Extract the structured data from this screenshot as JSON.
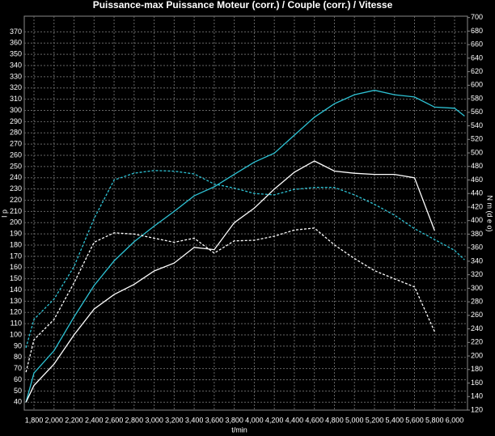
{
  "chart_data": {
    "type": "line",
    "title": "Puissance-max Puissance Moteur (corr.) / Couple (corr.) / Vitesse",
    "x_label": "t/min",
    "y_label": "I p",
    "y2_label": "N m (d e o)",
    "x": [
      1720,
      1800,
      2000,
      2200,
      2400,
      2600,
      2800,
      3000,
      3200,
      3400,
      3600,
      3800,
      4000,
      4200,
      4400,
      4600,
      4800,
      5000,
      5200,
      5400,
      5600,
      5800,
      6000,
      6100
    ],
    "series": [
      {
        "color": "#2ec4d6",
        "dashed": false,
        "axis": "y",
        "values": [
          40,
          66,
          86,
          116,
          144,
          166,
          183,
          197,
          210,
          224,
          232,
          243,
          254,
          262,
          278,
          294,
          306,
          314,
          318,
          314,
          312,
          303,
          302,
          295
        ]
      },
      {
        "color": "#ffffff",
        "dashed": false,
        "axis": "y",
        "values": [
          40,
          55,
          74,
          100,
          123,
          136,
          145,
          157,
          164,
          178,
          176,
          200,
          213,
          230,
          245,
          255,
          246,
          244,
          243,
          243,
          240,
          193,
          null,
          null
        ]
      },
      {
        "color": "#2ec4d6",
        "dashed": true,
        "axis": "y2",
        "values": [
          212,
          254,
          284,
          332,
          403,
          460,
          470,
          474,
          473,
          469,
          454,
          448,
          440,
          438,
          446,
          449,
          449,
          438,
          424,
          408,
          388,
          372,
          356,
          342
        ]
      },
      {
        "color": "#ffffff",
        "dashed": true,
        "axis": "y2",
        "values": [
          176,
          224,
          254,
          308,
          368,
          382,
          380,
          374,
          368,
          374,
          352,
          370,
          371,
          377,
          386,
          389,
          364,
          344,
          326,
          314,
          302,
          236,
          null,
          null
        ]
      }
    ],
    "xlim": [
      1703,
      6129
    ],
    "xticks": [
      {
        "value": 1800,
        "label": "1,800"
      },
      {
        "value": 2000,
        "label": "2,000"
      },
      {
        "value": 2200,
        "label": "2,200"
      },
      {
        "value": 2400,
        "label": "2,400"
      },
      {
        "value": 2600,
        "label": "2,600"
      },
      {
        "value": 2800,
        "label": "2,800"
      },
      {
        "value": 3000,
        "label": "3,000"
      },
      {
        "value": 3200,
        "label": "3,200"
      },
      {
        "value": 3400,
        "label": "3,400"
      },
      {
        "value": 3600,
        "label": "3,600"
      },
      {
        "value": 3800,
        "label": "3,800"
      },
      {
        "value": 4000,
        "label": "4,000"
      },
      {
        "value": 4200,
        "label": "4,200"
      },
      {
        "value": 4400,
        "label": "4,400"
      },
      {
        "value": 4600,
        "label": "4,600"
      },
      {
        "value": 4800,
        "label": "4,800"
      },
      {
        "value": 5000,
        "label": "5,000"
      },
      {
        "value": 5200,
        "label": "5,200"
      },
      {
        "value": 5400,
        "label": "5,400"
      },
      {
        "value": 5600,
        "label": "5,600"
      },
      {
        "value": 5800,
        "label": "5,800"
      },
      {
        "value": 6000,
        "label": "6,000"
      }
    ],
    "ylim": [
      33,
      384
    ],
    "yticks": [
      40,
      50,
      60,
      70,
      80,
      90,
      100,
      110,
      120,
      130,
      140,
      150,
      160,
      170,
      180,
      190,
      200,
      210,
      220,
      230,
      240,
      250,
      260,
      270,
      280,
      290,
      300,
      310,
      320,
      330,
      340,
      350,
      360,
      370
    ],
    "y2lim": [
      120,
      702
    ],
    "y2ticks": [
      120,
      140,
      160,
      180,
      200,
      220,
      240,
      260,
      280,
      300,
      320,
      340,
      360,
      380,
      400,
      420,
      440,
      460,
      480,
      500,
      520,
      540,
      560,
      580,
      600,
      620,
      640,
      660,
      680,
      700
    ],
    "grid": true
  }
}
